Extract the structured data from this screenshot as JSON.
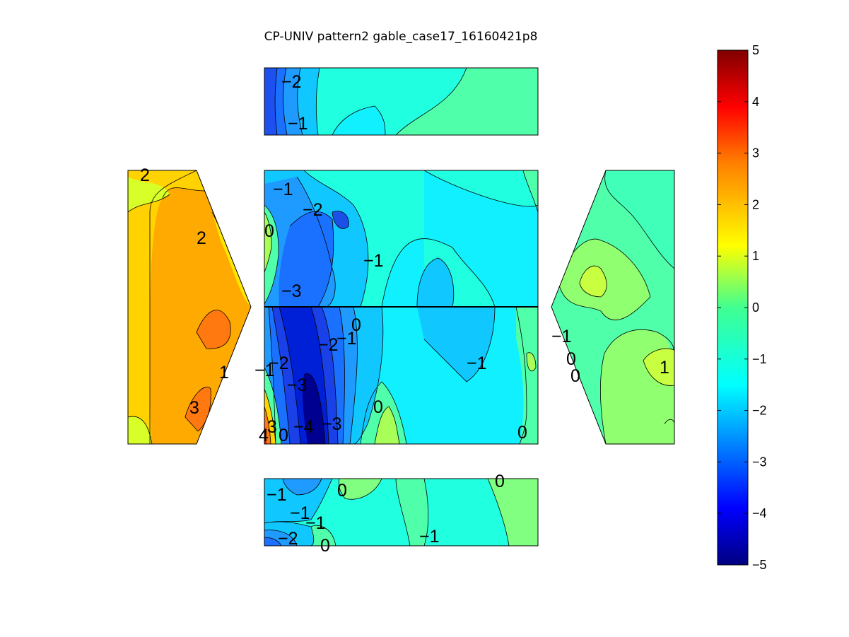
{
  "chart_data": {
    "type": "heatmap",
    "subtype": "filled-contour",
    "title": "CP-UNIV pattern2 gable_case17_16160421p8",
    "colormap": "jet",
    "colorbar": {
      "range": [
        -5,
        5
      ],
      "ticks": [
        "5",
        "4",
        "3",
        "2",
        "1",
        "0",
        "−1",
        "−2",
        "−3",
        "−4",
        "−5"
      ],
      "placement": "right"
    },
    "faces": [
      {
        "name": "top-strip",
        "contour_labels": [
          "−2",
          "−1"
        ]
      },
      {
        "name": "left-gable",
        "contour_labels": [
          "2",
          "2",
          "1",
          "3"
        ]
      },
      {
        "name": "upper-roof",
        "contour_labels": [
          "−1",
          "−2",
          "0",
          "−1",
          "−3"
        ]
      },
      {
        "name": "lower-roof",
        "contour_labels": [
          "0",
          "−1",
          "−2",
          "−1",
          "−2",
          "−3",
          "−1",
          "0",
          "−4",
          "−3",
          "4",
          "3",
          "0",
          "0"
        ]
      },
      {
        "name": "right-gable",
        "contour_labels": [
          "−1",
          "0",
          "0",
          "1"
        ]
      },
      {
        "name": "bottom-strip",
        "contour_labels": [
          "−1",
          "−1",
          "0",
          "−1",
          "−2",
          "0",
          "0",
          "−1"
        ]
      }
    ]
  }
}
